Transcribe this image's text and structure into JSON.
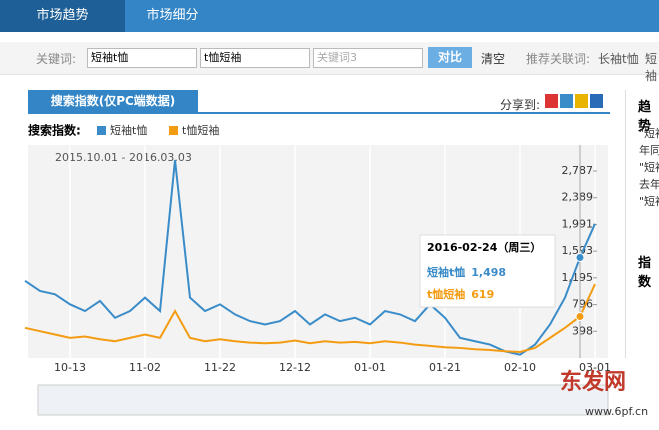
{
  "tabs": [
    "市场趋势",
    "市场细分"
  ],
  "search": {
    "label": "关键词:",
    "keywords": [
      "短袖t恤",
      "t恤短袖"
    ],
    "placeholder": "关键词3",
    "compare": "对比",
    "clear": "清空",
    "related_label": "推荐关联词:",
    "related": [
      "长袖t恤",
      "短袖"
    ]
  },
  "panel": {
    "tab": "搜索指数(仅PC端数据)",
    "share": "分享到:",
    "legend_label": "搜索指数:",
    "date_range": "2015.10.01 - 2016.03.03"
  },
  "side": {
    "title": "趋势",
    "lines": [
      "\"短袖",
      "年同",
      "\"短袖",
      "去年",
      "\"短袖"
    ],
    "index": "指数"
  },
  "tooltip": {
    "date": "2016-02-24（周三）",
    "values": [
      1498,
      619
    ],
    "value_labels": [
      "1,498",
      "619"
    ]
  },
  "watermark": [
    "东发网",
    "www.6pf.cn"
  ],
  "chart_data": {
    "type": "line",
    "categories": [
      null,
      null,
      null,
      "10-13",
      null,
      null,
      null,
      null,
      "11-02",
      null,
      null,
      null,
      null,
      "11-22",
      null,
      null,
      null,
      null,
      "12-12",
      null,
      null,
      null,
      null,
      "01-01",
      null,
      null,
      null,
      null,
      "01-21",
      null,
      null,
      null,
      null,
      "02-10",
      null,
      null,
      null,
      null,
      "03-01"
    ],
    "series": [
      {
        "name": "短袖t恤",
        "color": "#3a8cc9",
        "values": [
          1150,
          1000,
          950,
          800,
          700,
          850,
          600,
          700,
          900,
          700,
          2950,
          900,
          700,
          800,
          650,
          550,
          500,
          550,
          700,
          500,
          650,
          550,
          600,
          500,
          700,
          650,
          550,
          800,
          600,
          300,
          250,
          200,
          100,
          50,
          200,
          500,
          900,
          1498,
          2000
        ]
      },
      {
        "name": "t恤短袖",
        "color": "#f39c12",
        "values": [
          450,
          400,
          350,
          300,
          320,
          280,
          250,
          300,
          350,
          300,
          700,
          300,
          250,
          280,
          250,
          230,
          220,
          230,
          260,
          220,
          250,
          230,
          240,
          220,
          250,
          230,
          200,
          180,
          160,
          150,
          130,
          120,
          100,
          90,
          150,
          300,
          450,
          619,
          1100
        ]
      }
    ],
    "ylim": [
      0,
      3175
    ],
    "yticks": [
      {
        "value": 398,
        "label": "398"
      },
      {
        "value": 796,
        "label": "796"
      },
      {
        "value": 1195,
        "label": "1,195"
      },
      {
        "value": 1593,
        "label": "1,593"
      },
      {
        "value": 1991,
        "label": "1,991"
      },
      {
        "value": 2389,
        "label": "2,389"
      },
      {
        "value": 2787,
        "label": "2,787"
      }
    ],
    "grid": true
  }
}
